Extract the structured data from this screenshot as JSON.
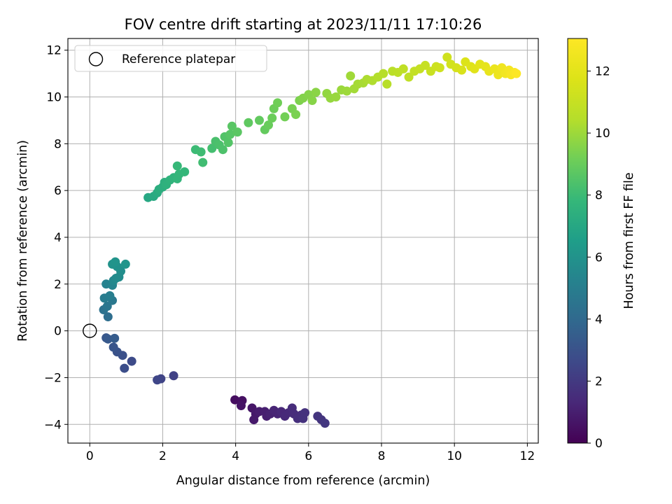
{
  "chart_data": {
    "type": "scatter",
    "title": "FOV centre drift starting at 2023/11/11 17:10:26",
    "xlabel": "Angular distance from reference (arcmin)",
    "ylabel": "Rotation from reference (arcmin)",
    "xlim": [
      -0.6,
      12.3
    ],
    "ylim": [
      -4.8,
      12.5
    ],
    "xticks": [
      0,
      2,
      4,
      6,
      8,
      10,
      12
    ],
    "yticks": [
      -4,
      -2,
      0,
      2,
      4,
      6,
      8,
      10,
      12
    ],
    "grid": true,
    "legend": {
      "position": "top-left",
      "entries": [
        "Reference platepar"
      ]
    },
    "reference_point": {
      "x": 0,
      "y": 0,
      "label": "Reference platepar"
    },
    "colorbar": {
      "label": "Hours from first FF file",
      "colormap": "viridis",
      "range": [
        0,
        13.05
      ],
      "ticks": [
        0,
        2,
        4,
        6,
        8,
        10,
        12
      ]
    },
    "series": [
      {
        "points": [
          [
            3.98,
            -2.95,
            0.4
          ],
          [
            4.18,
            -2.98,
            0.5
          ],
          [
            4.15,
            -3.2,
            0.6
          ],
          [
            4.45,
            -3.3,
            0.7
          ],
          [
            4.55,
            -3.55,
            0.8
          ],
          [
            4.5,
            -3.8,
            0.8
          ],
          [
            4.65,
            -3.45,
            0.9
          ],
          [
            4.8,
            -3.45,
            1.0
          ],
          [
            4.85,
            -3.65,
            1.0
          ],
          [
            4.95,
            -3.55,
            1.1
          ],
          [
            5.05,
            -3.4,
            1.2
          ],
          [
            5.15,
            -3.55,
            1.2
          ],
          [
            5.25,
            -3.45,
            1.3
          ],
          [
            5.35,
            -3.65,
            1.4
          ],
          [
            5.45,
            -3.5,
            1.4
          ],
          [
            5.55,
            -3.3,
            1.5
          ],
          [
            5.6,
            -3.55,
            1.5
          ],
          [
            5.7,
            -3.75,
            1.6
          ],
          [
            5.8,
            -3.6,
            1.6
          ],
          [
            5.85,
            -3.75,
            1.7
          ],
          [
            5.9,
            -3.5,
            1.7
          ],
          [
            6.25,
            -3.65,
            1.8
          ],
          [
            6.35,
            -3.8,
            1.8
          ],
          [
            6.45,
            -3.95,
            1.9
          ],
          [
            2.3,
            -1.92,
            2.3
          ],
          [
            1.95,
            -2.05,
            2.4
          ],
          [
            1.85,
            -2.1,
            2.5
          ],
          [
            1.15,
            -1.3,
            2.7
          ],
          [
            0.95,
            -1.6,
            2.8
          ],
          [
            0.9,
            -1.05,
            2.9
          ],
          [
            0.75,
            -0.9,
            3.0
          ],
          [
            0.65,
            -0.7,
            3.1
          ],
          [
            0.45,
            -0.3,
            3.2
          ],
          [
            0.5,
            -0.35,
            3.3
          ],
          [
            0.68,
            -0.32,
            3.4
          ],
          [
            0.5,
            0.6,
            4.2
          ],
          [
            0.38,
            0.9,
            4.4
          ],
          [
            0.48,
            1.05,
            4.6
          ],
          [
            0.62,
            1.3,
            4.7
          ],
          [
            0.4,
            1.4,
            4.9
          ],
          [
            0.55,
            1.5,
            5.0
          ],
          [
            0.45,
            2.0,
            5.2
          ],
          [
            0.62,
            1.95,
            5.3
          ],
          [
            0.65,
            2.15,
            5.5
          ],
          [
            0.72,
            2.25,
            5.6
          ],
          [
            0.8,
            2.3,
            5.7
          ],
          [
            0.85,
            2.55,
            5.8
          ],
          [
            0.75,
            2.75,
            5.9
          ],
          [
            0.62,
            2.85,
            6.0
          ],
          [
            0.7,
            2.95,
            6.05
          ],
          [
            0.98,
            2.85,
            6.1
          ],
          [
            1.6,
            5.7,
            7.0
          ],
          [
            1.75,
            5.75,
            7.1
          ],
          [
            1.85,
            5.9,
            7.2
          ],
          [
            1.9,
            6.05,
            7.3
          ],
          [
            2.0,
            6.15,
            7.35
          ],
          [
            2.05,
            6.35,
            7.4
          ],
          [
            2.1,
            6.25,
            7.5
          ],
          [
            2.2,
            6.45,
            7.55
          ],
          [
            2.3,
            6.55,
            7.6
          ],
          [
            2.4,
            6.5,
            7.7
          ],
          [
            2.45,
            6.7,
            7.75
          ],
          [
            2.6,
            6.8,
            7.8
          ],
          [
            2.4,
            7.05,
            7.85
          ],
          [
            2.9,
            7.75,
            8.0
          ],
          [
            3.05,
            7.65,
            8.05
          ],
          [
            3.1,
            7.2,
            8.1
          ],
          [
            3.35,
            7.8,
            8.2
          ],
          [
            3.45,
            8.1,
            8.3
          ],
          [
            3.55,
            7.95,
            8.35
          ],
          [
            3.65,
            7.75,
            8.4
          ],
          [
            3.7,
            8.3,
            8.5
          ],
          [
            3.8,
            8.05,
            8.55
          ],
          [
            3.85,
            8.4,
            8.6
          ],
          [
            3.9,
            8.75,
            8.65
          ],
          [
            4.05,
            8.5,
            8.7
          ],
          [
            4.35,
            8.9,
            8.8
          ],
          [
            4.65,
            9.0,
            8.85
          ],
          [
            4.8,
            8.6,
            8.9
          ],
          [
            4.9,
            8.8,
            9.0
          ],
          [
            5.0,
            9.1,
            9.05
          ],
          [
            5.05,
            9.5,
            9.1
          ],
          [
            5.15,
            9.75,
            9.15
          ],
          [
            5.35,
            9.15,
            9.2
          ],
          [
            5.55,
            9.5,
            9.3
          ],
          [
            5.65,
            9.25,
            9.35
          ],
          [
            5.75,
            9.85,
            9.4
          ],
          [
            5.85,
            9.95,
            9.5
          ],
          [
            6.0,
            10.1,
            9.55
          ],
          [
            6.1,
            9.85,
            9.6
          ],
          [
            6.2,
            10.2,
            9.65
          ],
          [
            6.5,
            10.15,
            9.8
          ],
          [
            6.6,
            9.95,
            9.85
          ],
          [
            6.75,
            10.0,
            9.9
          ],
          [
            6.9,
            10.3,
            9.95
          ],
          [
            7.05,
            10.25,
            10.0
          ],
          [
            7.15,
            10.9,
            10.05
          ],
          [
            7.25,
            10.35,
            10.1
          ],
          [
            7.35,
            10.55,
            10.15
          ],
          [
            7.5,
            10.6,
            10.2
          ],
          [
            7.6,
            10.75,
            10.3
          ],
          [
            7.75,
            10.7,
            10.35
          ],
          [
            7.9,
            10.85,
            10.4
          ],
          [
            8.05,
            11.0,
            10.5
          ],
          [
            8.15,
            10.55,
            10.55
          ],
          [
            8.3,
            11.1,
            10.6
          ],
          [
            8.45,
            11.05,
            10.7
          ],
          [
            8.6,
            11.2,
            10.75
          ],
          [
            8.75,
            10.85,
            10.8
          ],
          [
            8.9,
            11.1,
            10.9
          ],
          [
            9.05,
            11.2,
            10.95
          ],
          [
            9.2,
            11.35,
            11.0
          ],
          [
            9.35,
            11.1,
            11.1
          ],
          [
            9.5,
            11.3,
            11.2
          ],
          [
            9.6,
            11.25,
            11.25
          ],
          [
            9.8,
            11.7,
            11.3
          ],
          [
            9.9,
            11.4,
            11.4
          ],
          [
            10.05,
            11.25,
            11.5
          ],
          [
            10.2,
            11.15,
            11.6
          ],
          [
            10.3,
            11.5,
            11.7
          ],
          [
            10.45,
            11.3,
            11.8
          ],
          [
            10.55,
            11.2,
            11.9
          ],
          [
            10.7,
            11.4,
            12.0
          ],
          [
            10.85,
            11.3,
            12.1
          ],
          [
            10.95,
            11.1,
            12.2
          ],
          [
            11.1,
            11.2,
            12.3
          ],
          [
            11.2,
            10.95,
            12.4
          ],
          [
            11.3,
            11.25,
            12.5
          ],
          [
            11.4,
            11.0,
            12.6
          ],
          [
            11.5,
            11.15,
            12.7
          ],
          [
            11.55,
            10.95,
            12.8
          ],
          [
            11.65,
            11.05,
            12.9
          ],
          [
            11.7,
            11.0,
            13.0
          ]
        ]
      }
    ]
  }
}
